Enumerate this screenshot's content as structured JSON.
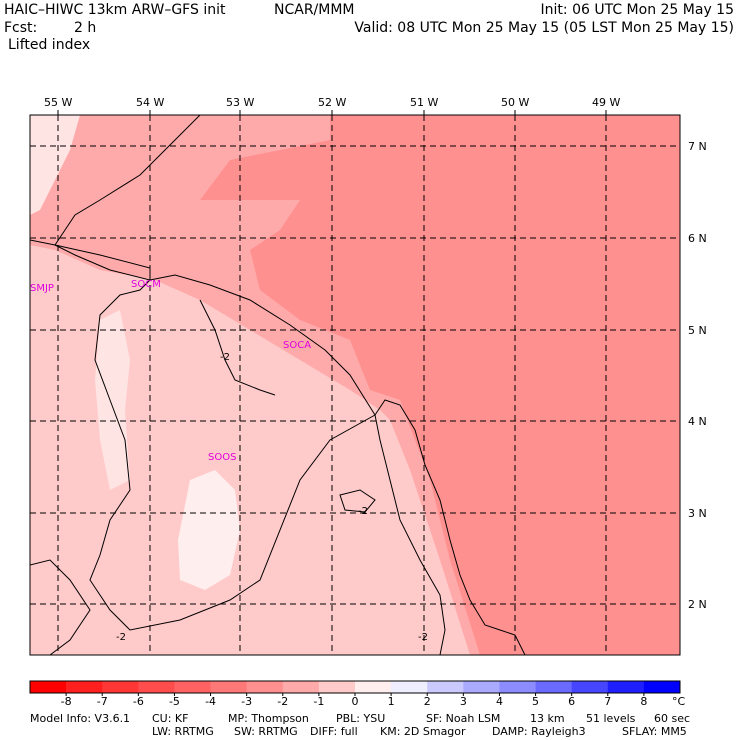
{
  "header": {
    "model_title": "HAIC–HIWC 13km ARW–GFS init",
    "org": "NCAR/MMM",
    "init": "Init: 06 UTC Mon 25 May 15",
    "fcst_label": "Fcst:",
    "fcst_value": "2 h",
    "valid": "Valid: 08 UTC Mon 25 May 15 (05 LST Mon 25 May 15)",
    "field": "Lifted index"
  },
  "map": {
    "lon_labels": [
      "55 W",
      "54 W",
      "53 W",
      "52 W",
      "51 W",
      "50 W",
      "49 W"
    ],
    "lat_labels": [
      "7 N",
      "6 N",
      "5 N",
      "4 N",
      "3 N",
      "2 N"
    ],
    "stations": [
      "SMJP",
      "SOCM",
      "SOCA",
      "SOOS"
    ],
    "contour_labels": [
      "-2",
      "-2",
      "-2",
      "-2"
    ]
  },
  "colorbar": {
    "ticks": [
      "-8",
      "-7",
      "-6",
      "-5",
      "-4",
      "-3",
      "-2",
      "-1",
      "0",
      "1",
      "2",
      "3",
      "4",
      "5",
      "6",
      "7",
      "8"
    ],
    "unit": "°C",
    "colors": [
      "#ff0000",
      "#ff1f1f",
      "#ff3636",
      "#ff4d4d",
      "#ff6262",
      "#ff7878",
      "#ff9090",
      "#ffaaaa",
      "#ffcaca",
      "#ffeeee",
      "#eeeeff",
      "#cacaff",
      "#aaaaff",
      "#8c8cff",
      "#6a6aff",
      "#4646ff",
      "#1e1eff",
      "#0000ff"
    ]
  },
  "footer": {
    "line1": [
      "Model Info: V3.6.1",
      "CU: KF",
      "MP: Thompson",
      "PBL: YSU",
      "SF: Noah LSM",
      "13 km",
      "51 levels",
      "60 sec"
    ],
    "line2": [
      "LW: RRTMG",
      "SW: RRTMG",
      "DIFF: full",
      "KM: 2D Smagor",
      "DAMP: Rayleigh3",
      "SFLAY: MM5"
    ]
  }
}
